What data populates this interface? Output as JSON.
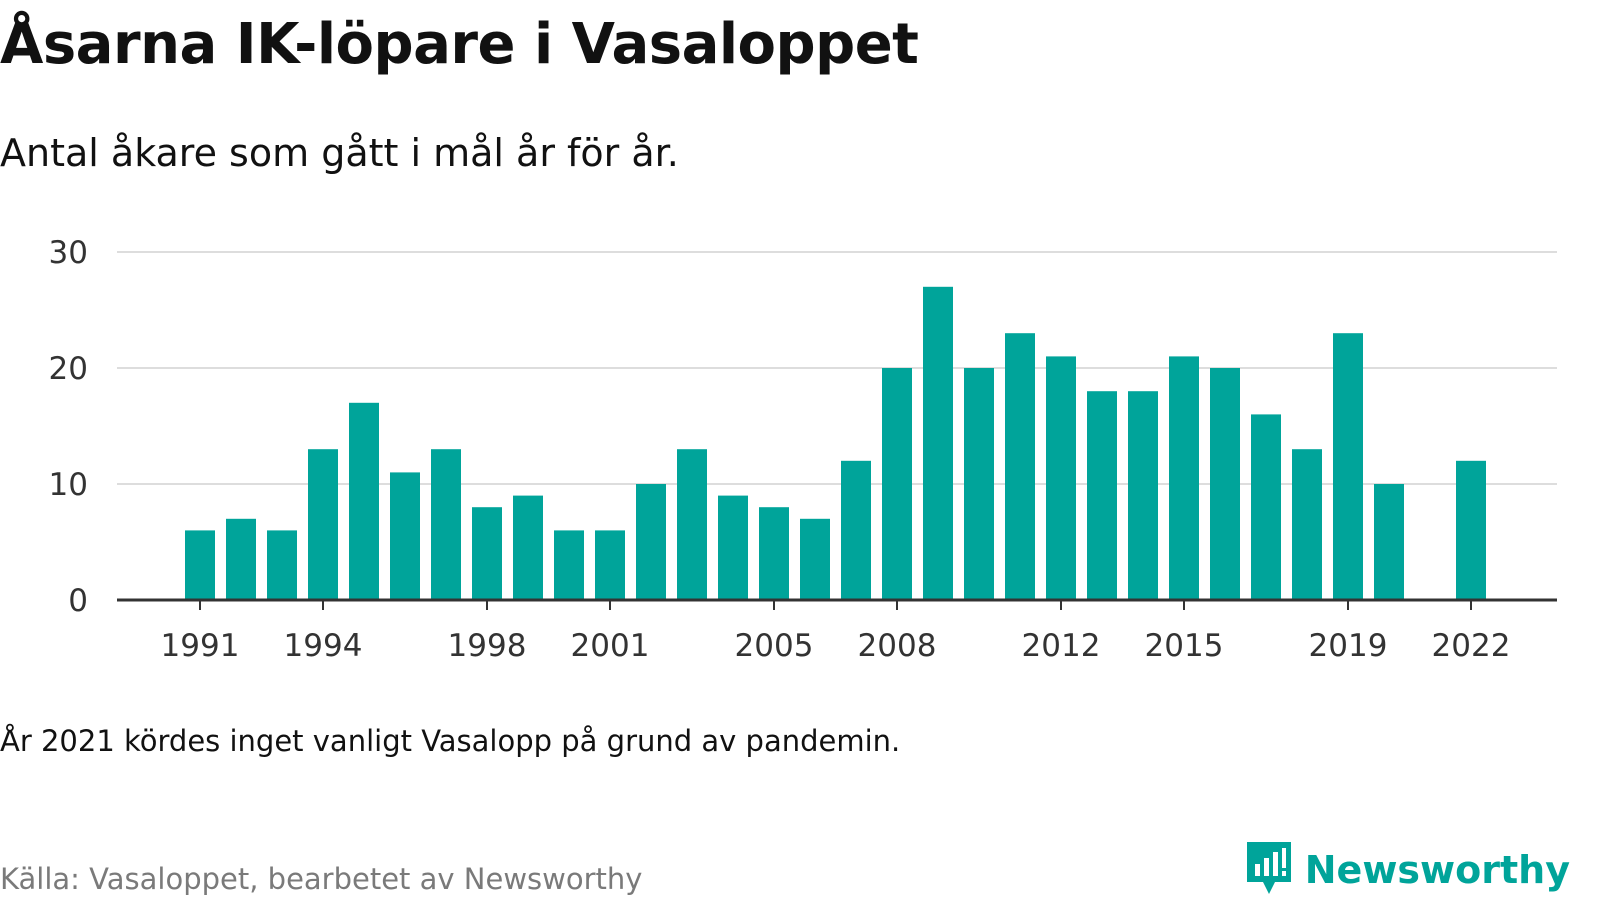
{
  "title": "Åsarna IK-löpare i Vasaloppet",
  "subtitle": "Antal åkare som gått i mål år för år.",
  "note": "År 2021 kördes inget vanligt Vasalopp på grund av pandemin.",
  "source": "Källa: Vasaloppet, bearbetet av Newsworthy",
  "brand": {
    "name": "Newsworthy",
    "icon": "newsworthy-logo-icon"
  },
  "colors": {
    "bar": "#00a49a",
    "grid": "#dddddd",
    "axis": "#333333"
  },
  "chart_data": {
    "type": "bar",
    "x": [
      1991,
      1992,
      1993,
      1994,
      1995,
      1996,
      1997,
      1998,
      1999,
      2000,
      2001,
      2002,
      2003,
      2004,
      2005,
      2006,
      2007,
      2008,
      2009,
      2010,
      2011,
      2012,
      2013,
      2014,
      2015,
      2016,
      2017,
      2018,
      2019,
      2020,
      2021,
      2022
    ],
    "values": [
      6,
      7,
      6,
      13,
      17,
      11,
      13,
      8,
      9,
      6,
      6,
      10,
      13,
      9,
      8,
      7,
      12,
      20,
      27,
      20,
      23,
      21,
      18,
      18,
      21,
      20,
      16,
      13,
      23,
      10,
      null,
      12
    ],
    "x_ticks": [
      "1991",
      "1994",
      "1998",
      "2001",
      "2005",
      "2008",
      "2012",
      "2015",
      "2019",
      "2022"
    ],
    "y_ticks": [
      "0",
      "10",
      "20",
      "30"
    ],
    "ylim": [
      0,
      30
    ],
    "grid": true,
    "xlabel": "",
    "ylabel": ""
  }
}
